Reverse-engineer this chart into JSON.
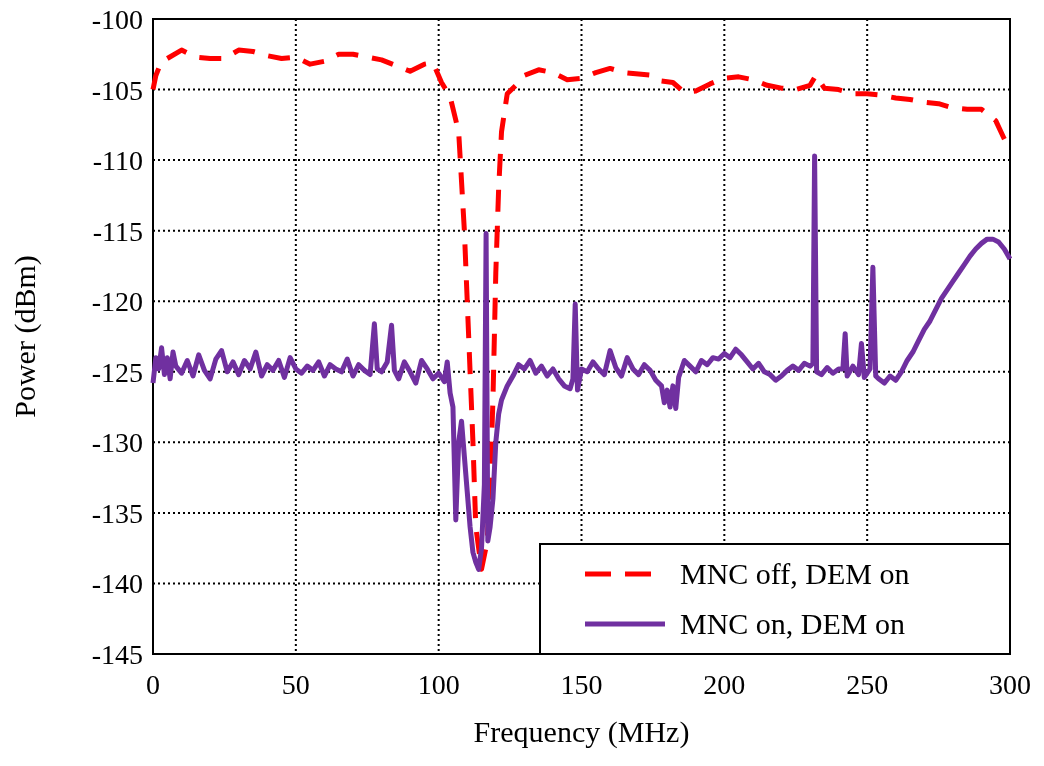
{
  "chart_data": {
    "type": "line",
    "xlabel": "Frequency (MHz)",
    "ylabel": "Power (dBm)",
    "xlim": [
      0,
      300
    ],
    "xticks": [
      0,
      50,
      100,
      150,
      200,
      250,
      300
    ],
    "ylim": [
      -145,
      -100
    ],
    "yticks": [
      -145,
      -140,
      -135,
      -130,
      -125,
      -120,
      -115,
      -110,
      -105,
      -100
    ],
    "grid": true,
    "legend": "bottom right",
    "series": [
      {
        "name": "MNC off, DEM on",
        "color": "#ff0000",
        "line_style": "dashed",
        "x": [
          0,
          1,
          3,
          5,
          10,
          15,
          20,
          25,
          30,
          35,
          40,
          45,
          50,
          55,
          60,
          65,
          70,
          75,
          80,
          85,
          90,
          95,
          98,
          101,
          104,
          107,
          109,
          111,
          112,
          113,
          115,
          117,
          118,
          119,
          120,
          121,
          122,
          124,
          127,
          130,
          135,
          140,
          145,
          150,
          155,
          160,
          165,
          170,
          175,
          178,
          182,
          186,
          190,
          195,
          200,
          205,
          210,
          215,
          220,
          225,
          230,
          232,
          235,
          240,
          245,
          250,
          255,
          260,
          265,
          270,
          275,
          280,
          285,
          290,
          295,
          298,
          300
        ],
        "values": [
          -105,
          -104,
          -103,
          -102.8,
          -102.2,
          -102.7,
          -102.8,
          -102.8,
          -102.2,
          -102.3,
          -102.6,
          -102.8,
          -102.7,
          -103.2,
          -103,
          -102.5,
          -102.5,
          -102.7,
          -102.9,
          -103.3,
          -103.7,
          -103.2,
          -103.1,
          -104.5,
          -105.5,
          -108,
          -115,
          -125,
          -130,
          -136,
          -139,
          -137,
          -133,
          -127,
          -118,
          -112,
          -108,
          -105.3,
          -104.7,
          -104,
          -103.6,
          -103.8,
          -104.3,
          -104.2,
          -103.8,
          -103.5,
          -103.8,
          -103.9,
          -104,
          -104.4,
          -104.5,
          -105.2,
          -105.1,
          -104.6,
          -104.2,
          -104.1,
          -104.3,
          -104.7,
          -104.9,
          -105,
          -104.7,
          -104,
          -104.9,
          -105,
          -105.3,
          -105.3,
          -105.4,
          -105.6,
          -105.7,
          -105.9,
          -106,
          -106.3,
          -106.4,
          -106.4,
          -107.2,
          -108.5,
          -109.3
        ]
      },
      {
        "name": "MNC on, DEM on",
        "color": "#7030a0",
        "line_style": "solid",
        "x": [
          0,
          1,
          2,
          3,
          4,
          5,
          6,
          7,
          8,
          10,
          12,
          14,
          16,
          18,
          20,
          22,
          24,
          26,
          28,
          30,
          32,
          34,
          36,
          38,
          40,
          42,
          44,
          46,
          48,
          50,
          52,
          54,
          56,
          58,
          60,
          62,
          64,
          66,
          68,
          70,
          72,
          74,
          76,
          77.5,
          78.5,
          80,
          82,
          83.5,
          84.5,
          86,
          88,
          90,
          92,
          94,
          96,
          98,
          100,
          102,
          103,
          104,
          105,
          106,
          107,
          108,
          109,
          110,
          111,
          112,
          113,
          114,
          115,
          116,
          116.6,
          117.2,
          118,
          119,
          120,
          121,
          122,
          124,
          126,
          128,
          130,
          132,
          134,
          136,
          138,
          140,
          142,
          144,
          146,
          147,
          147.8,
          148.6,
          150,
          152,
          154,
          156,
          158,
          160,
          162,
          164,
          166,
          168,
          170,
          172,
          174,
          176,
          178,
          179,
          180,
          181,
          182,
          183,
          184,
          185,
          186,
          188,
          190,
          192,
          194,
          196,
          198,
          200,
          202,
          204,
          206,
          208,
          210,
          212,
          214,
          216,
          218,
          220,
          222,
          224,
          226,
          228,
          230,
          231,
          231.6,
          232.3,
          234,
          236,
          238,
          240,
          241.5,
          242.3,
          243,
          245,
          247,
          248,
          249,
          251,
          252,
          253,
          254,
          256,
          258,
          260,
          262,
          264,
          266,
          268,
          270,
          272,
          274,
          276,
          278,
          280,
          282,
          284,
          286,
          288,
          290,
          292,
          294,
          296,
          298,
          300
        ],
        "values": [
          -125.8,
          -124,
          -124.8,
          -123.3,
          -125.2,
          -124,
          -125.5,
          -123.6,
          -124.6,
          -125.1,
          -124.2,
          -125.3,
          -123.8,
          -124.9,
          -125.5,
          -124.1,
          -123.5,
          -125,
          -124.3,
          -125.2,
          -124.2,
          -124.8,
          -123.6,
          -125.3,
          -124.5,
          -124.9,
          -124.2,
          -125.4,
          -124,
          -124.8,
          -125.1,
          -124.6,
          -124.9,
          -124.3,
          -125.3,
          -124.5,
          -124.8,
          -125,
          -124.1,
          -125.3,
          -124.5,
          -124.9,
          -125.2,
          -121.6,
          -124.8,
          -125,
          -124.3,
          -121.7,
          -124.9,
          -125.5,
          -124.3,
          -125,
          -125.8,
          -124.2,
          -124.8,
          -125.5,
          -125.1,
          -125.7,
          -124.3,
          -126.5,
          -127.5,
          -135.5,
          -130,
          -128.5,
          -131,
          -133.5,
          -136,
          -137.8,
          -138.5,
          -139,
          -137.5,
          -133,
          -115.2,
          -137,
          -136,
          -134,
          -130,
          -128,
          -127,
          -126,
          -125.3,
          -124.5,
          -124.8,
          -124.2,
          -125.1,
          -124.6,
          -125.3,
          -124.8,
          -125.5,
          -126,
          -126.2,
          -125.5,
          -120.2,
          -126.3,
          -124.8,
          -125,
          -124.3,
          -124.8,
          -125.2,
          -123.5,
          -124.7,
          -125.3,
          -124,
          -124.8,
          -125.2,
          -124.5,
          -124.9,
          -125.6,
          -126,
          -127.2,
          -126.3,
          -127.5,
          -126,
          -127.6,
          -125.4,
          -124.8,
          -124.2,
          -124.6,
          -125,
          -124.2,
          -124.5,
          -124,
          -124.1,
          -123.7,
          -124,
          -123.4,
          -123.8,
          -124.3,
          -124.8,
          -124.4,
          -125,
          -125.2,
          -125.6,
          -125.3,
          -124.9,
          -124.6,
          -124.9,
          -124.4,
          -124.6,
          -124.4,
          -109.7,
          -125,
          -125.2,
          -124.7,
          -125.1,
          -124.8,
          -124.8,
          -122.3,
          -125.3,
          -124.6,
          -125.2,
          -123,
          -125.4,
          -124.8,
          -117.6,
          -125.3,
          -125.5,
          -125.8,
          -125.3,
          -125.6,
          -125,
          -124.2,
          -123.6,
          -122.8,
          -122,
          -121.4,
          -120.6,
          -119.8,
          -119.2,
          -118.6,
          -118,
          -117.4,
          -116.8,
          -116.3,
          -115.9,
          -115.6,
          -115.6,
          -115.8,
          -116.3,
          -117
        ]
      }
    ]
  }
}
